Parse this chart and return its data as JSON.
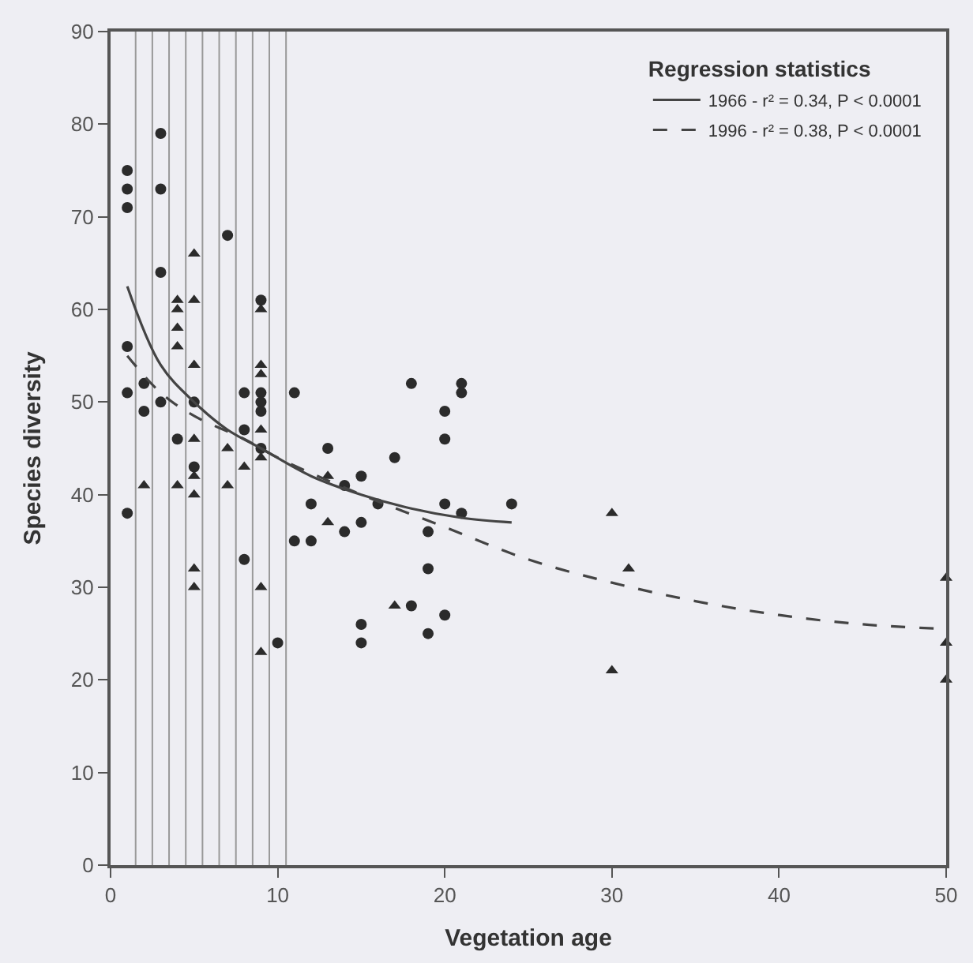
{
  "chart_data": {
    "type": "scatter",
    "xlabel": "Vegetation age",
    "ylabel": "Species diversity",
    "legend_title": "Regression statistics",
    "legend": "top right",
    "grid": false,
    "xlim": [
      0,
      50
    ],
    "xticks": [
      0,
      10,
      20,
      30,
      40,
      50
    ],
    "ylim": [
      0,
      90
    ],
    "yticks": [
      0,
      10,
      20,
      30,
      40,
      50,
      60,
      70,
      80,
      90
    ],
    "series": [
      {
        "marker": "circle",
        "color": "#2b2b2b",
        "x": [
          1,
          1,
          1,
          1,
          1,
          1,
          2,
          2,
          3,
          3,
          3,
          3,
          4,
          5,
          5,
          7,
          8,
          8,
          8,
          9,
          9,
          9,
          9,
          9,
          10,
          11,
          11,
          12,
          12,
          13,
          14,
          14,
          15,
          15,
          15,
          15,
          16,
          17,
          18,
          18,
          19,
          19,
          19,
          20,
          20,
          20,
          20,
          21,
          21,
          21,
          24
        ],
        "values": [
          75,
          73,
          71,
          56,
          51,
          38,
          52,
          49,
          79,
          73,
          64,
          50,
          46,
          50,
          43,
          68,
          51,
          47,
          33,
          61,
          51,
          50,
          49,
          45,
          24,
          51,
          35,
          39,
          35,
          45,
          41,
          36,
          42,
          37,
          26,
          24,
          39,
          44,
          52,
          28,
          36,
          32,
          25,
          49,
          46,
          39,
          27,
          52,
          51,
          38,
          39
        ]
      },
      {
        "marker": "triangle",
        "color": "#2b2b2b",
        "x": [
          2,
          4,
          4,
          4,
          4,
          4,
          5,
          5,
          5,
          5,
          5,
          5,
          5,
          5,
          7,
          7,
          8,
          9,
          9,
          9,
          9,
          9,
          9,
          9,
          13,
          13,
          17,
          30,
          30,
          31,
          50,
          50,
          50
        ],
        "values": [
          41,
          61,
          60,
          58,
          56,
          41,
          66,
          61,
          54,
          46,
          42,
          40,
          32,
          30,
          45,
          41,
          43,
          60,
          54,
          53,
          47,
          44,
          30,
          23,
          42,
          37,
          28,
          38,
          21,
          32,
          31,
          24,
          20
        ]
      },
      {
        "type": "line",
        "name": "1966 - r² = 0.34, P < 0.0001",
        "line_style": "solid",
        "color": "#444444",
        "x": [
          1,
          3,
          5,
          7,
          9,
          12,
          15,
          18,
          21,
          24
        ],
        "values": [
          62.5,
          54,
          50,
          47,
          45,
          42,
          40,
          38.5,
          37.5,
          37
        ]
      },
      {
        "type": "line",
        "name": "1996 - r² = 0.38, P < 0.0001",
        "line_style": "dashed",
        "color": "#444444",
        "x": [
          1,
          3,
          5,
          8,
          10,
          15,
          20,
          25,
          30,
          35,
          40,
          45,
          50
        ],
        "values": [
          55,
          51,
          48.5,
          46,
          44,
          40,
          36.5,
          33,
          30.5,
          28.5,
          27,
          26,
          25.5
        ]
      }
    ],
    "ref_lines": [
      {
        "axis": "x",
        "value": 1.5,
        "color": "#999999"
      },
      {
        "axis": "x",
        "value": 2.5,
        "color": "#999999"
      },
      {
        "axis": "x",
        "value": 3.5,
        "color": "#999999"
      },
      {
        "axis": "x",
        "value": 4.5,
        "color": "#999999"
      },
      {
        "axis": "x",
        "value": 5.5,
        "color": "#999999"
      },
      {
        "axis": "x",
        "value": 6.5,
        "color": "#999999"
      },
      {
        "axis": "x",
        "value": 7.5,
        "color": "#999999"
      },
      {
        "axis": "x",
        "value": 8.5,
        "color": "#999999"
      },
      {
        "axis": "x",
        "value": 9.5,
        "color": "#999999"
      },
      {
        "axis": "x",
        "value": 10.5,
        "color": "#999999"
      }
    ]
  }
}
